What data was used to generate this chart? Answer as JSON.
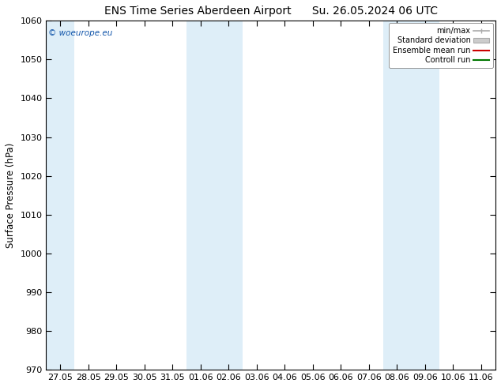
{
  "title": "ENS Time Series Aberdeen Airport",
  "title2": "Su. 26.05.2024 06 UTC",
  "ylabel": "Surface Pressure (hPa)",
  "ylim": [
    970,
    1060
  ],
  "yticks": [
    970,
    980,
    990,
    1000,
    1010,
    1020,
    1030,
    1040,
    1050,
    1060
  ],
  "x_labels": [
    "27.05",
    "28.05",
    "29.05",
    "30.05",
    "31.05",
    "01.06",
    "02.06",
    "03.06",
    "04.06",
    "05.06",
    "06.06",
    "07.06",
    "08.06",
    "09.06",
    "10.06",
    "11.06"
  ],
  "watermark": "© woeurope.eu",
  "legend_entries": [
    "min/max",
    "Standard deviation",
    "Ensemble mean run",
    "Controll run"
  ],
  "legend_line_colors": [
    "#aaaaaa",
    "#bbbbbb",
    "#cc0000",
    "#007700"
  ],
  "shaded_band_indices": [
    0,
    5,
    6,
    12,
    13
  ],
  "band_color": "#deeef8",
  "bg_color": "#ffffff",
  "plot_bg_color": "#ffffff",
  "title_fontsize": 10,
  "label_fontsize": 8.5,
  "tick_fontsize": 8
}
